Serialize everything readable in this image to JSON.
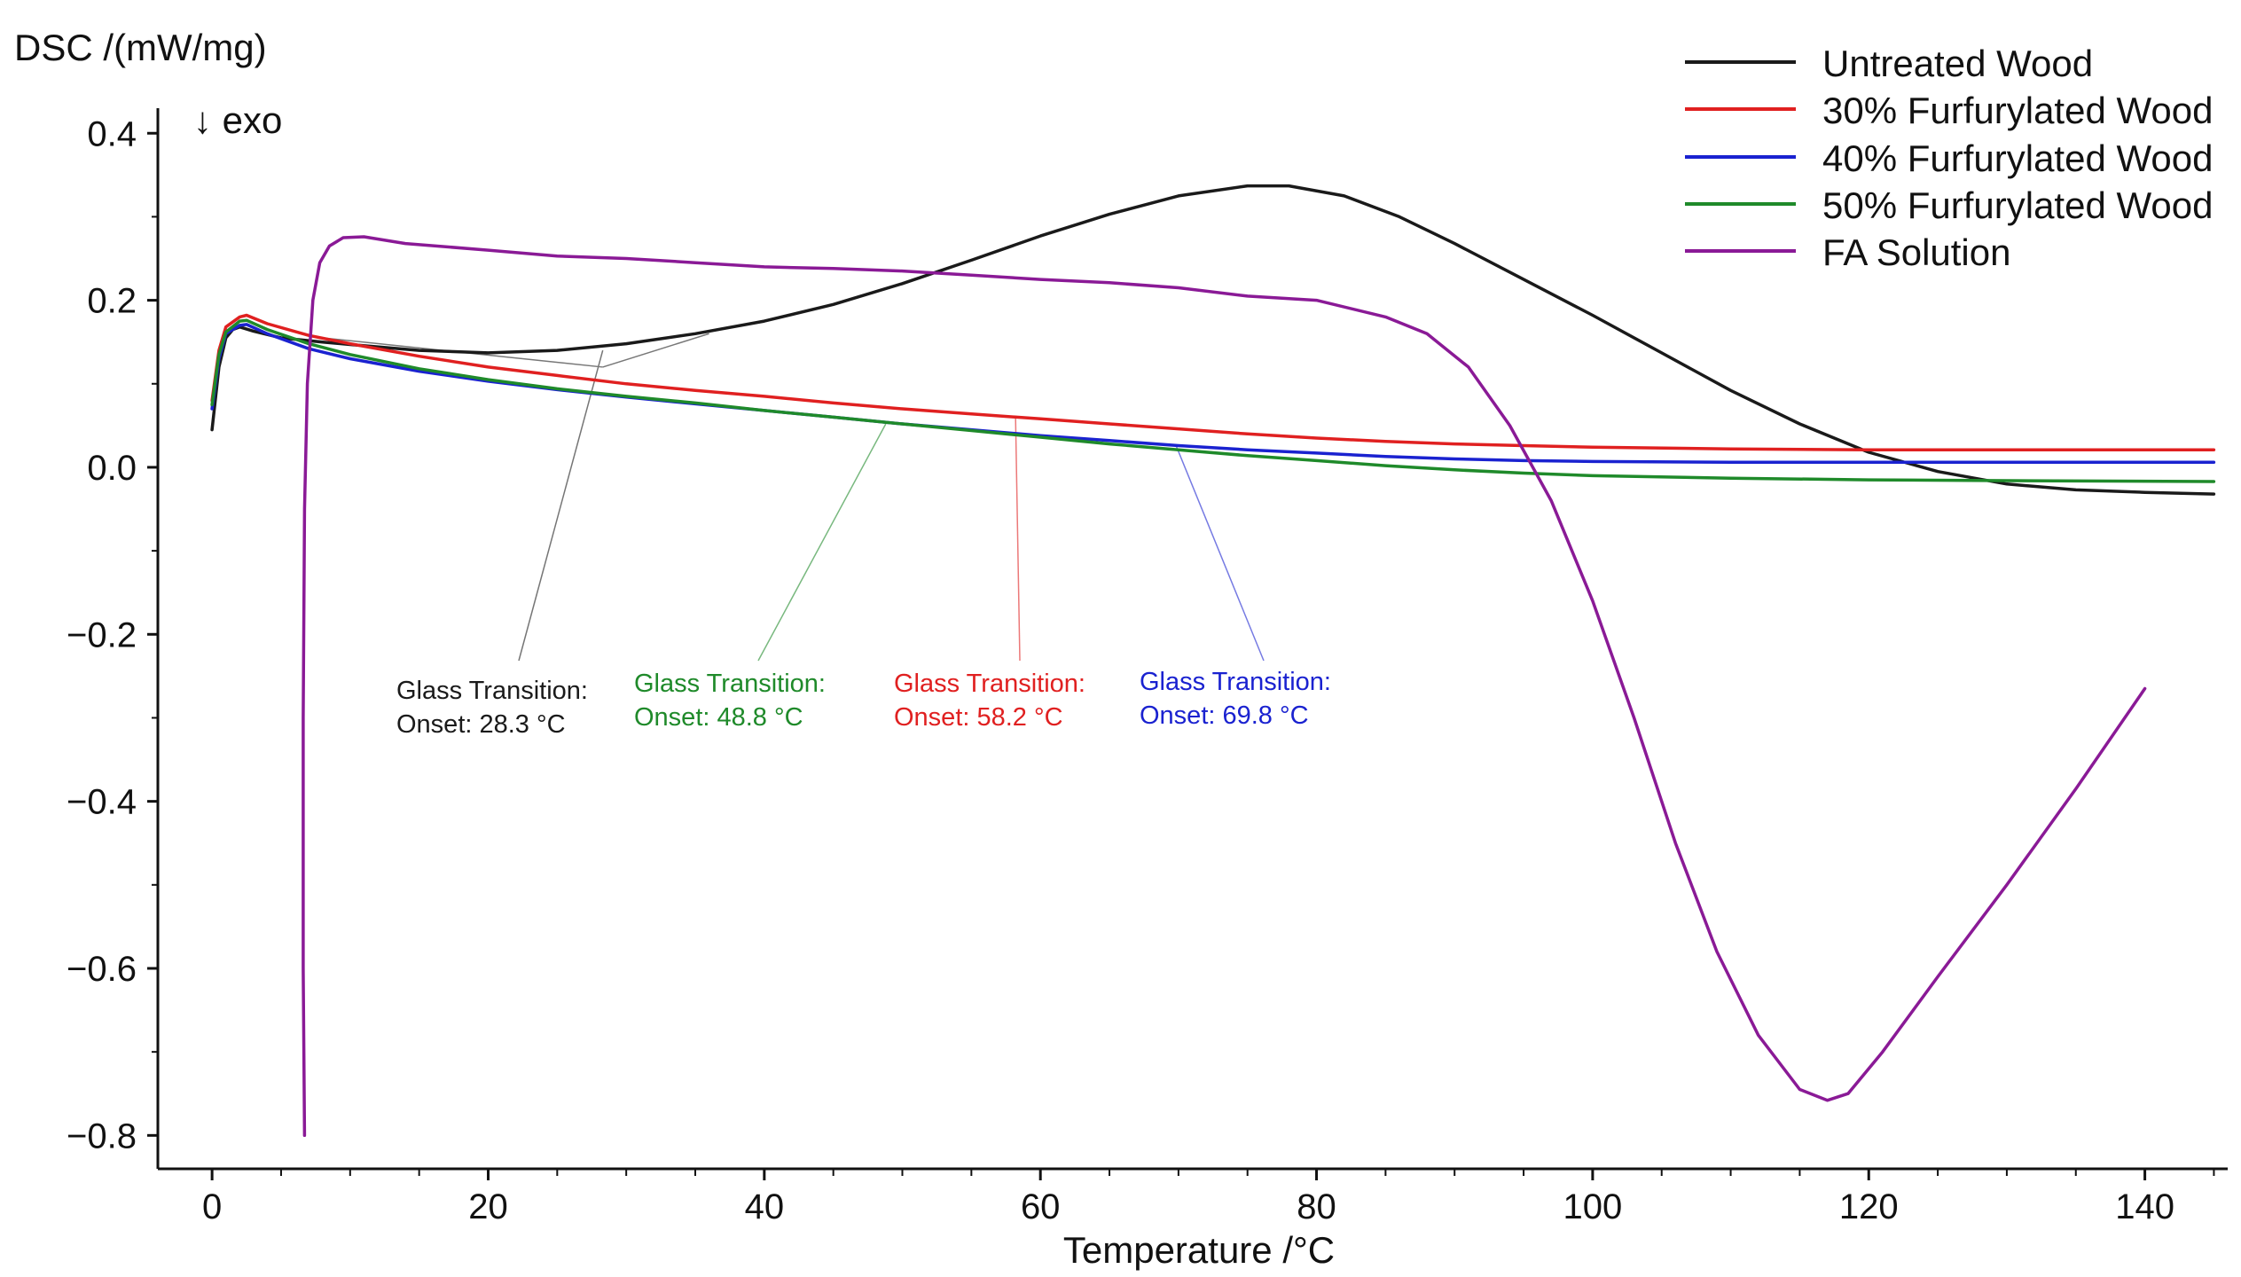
{
  "chart_data": {
    "type": "line",
    "ylabel": "DSC /(mW/mg)",
    "xlabel": "Temperature /°C",
    "direction_note": "↓ exo",
    "xlim": [
      -2,
      146
    ],
    "ylim": [
      -0.84,
      0.43
    ],
    "x_ticks": [
      0,
      20,
      40,
      60,
      80,
      100,
      120,
      140
    ],
    "x_tick_labels": [
      "0",
      "20",
      "40",
      "60",
      "80",
      "100",
      "120",
      "140"
    ],
    "y_ticks": [
      0.4,
      0.2,
      0.0,
      -0.2,
      -0.4,
      -0.6,
      -0.8
    ],
    "y_tick_labels": [
      "0.4",
      "0.2",
      "0.0",
      "−0.2",
      "−0.4",
      "−0.6",
      "−0.8"
    ],
    "legend_position": "top-right",
    "series": [
      {
        "name": "Untreated Wood",
        "color": "#1a1a1a",
        "points": [
          [
            0,
            0.045
          ],
          [
            0.5,
            0.12
          ],
          [
            1,
            0.155
          ],
          [
            1.5,
            0.165
          ],
          [
            2,
            0.168
          ],
          [
            3,
            0.163
          ],
          [
            5,
            0.155
          ],
          [
            8,
            0.15
          ],
          [
            10,
            0.147
          ],
          [
            15,
            0.14
          ],
          [
            20,
            0.137
          ],
          [
            25,
            0.14
          ],
          [
            30,
            0.148
          ],
          [
            35,
            0.16
          ],
          [
            40,
            0.175
          ],
          [
            45,
            0.195
          ],
          [
            50,
            0.22
          ],
          [
            55,
            0.248
          ],
          [
            60,
            0.277
          ],
          [
            65,
            0.303
          ],
          [
            70,
            0.325
          ],
          [
            75,
            0.337
          ],
          [
            78,
            0.337
          ],
          [
            82,
            0.325
          ],
          [
            86,
            0.3
          ],
          [
            90,
            0.268
          ],
          [
            95,
            0.225
          ],
          [
            100,
            0.182
          ],
          [
            105,
            0.137
          ],
          [
            110,
            0.092
          ],
          [
            115,
            0.052
          ],
          [
            120,
            0.018
          ],
          [
            125,
            -0.005
          ],
          [
            130,
            -0.02
          ],
          [
            135,
            -0.027
          ],
          [
            140,
            -0.03
          ],
          [
            145,
            -0.032
          ]
        ]
      },
      {
        "name": "30% Furfurylated Wood",
        "color": "#e02020",
        "points": [
          [
            0,
            0.08
          ],
          [
            0.5,
            0.14
          ],
          [
            1,
            0.168
          ],
          [
            2,
            0.18
          ],
          [
            2.5,
            0.182
          ],
          [
            4,
            0.172
          ],
          [
            7,
            0.158
          ],
          [
            10,
            0.148
          ],
          [
            15,
            0.133
          ],
          [
            20,
            0.12
          ],
          [
            25,
            0.11
          ],
          [
            30,
            0.1
          ],
          [
            35,
            0.092
          ],
          [
            40,
            0.085
          ],
          [
            45,
            0.077
          ],
          [
            50,
            0.07
          ],
          [
            55,
            0.064
          ],
          [
            60,
            0.058
          ],
          [
            65,
            0.052
          ],
          [
            70,
            0.046
          ],
          [
            75,
            0.04
          ],
          [
            80,
            0.035
          ],
          [
            85,
            0.031
          ],
          [
            90,
            0.028
          ],
          [
            95,
            0.026
          ],
          [
            100,
            0.024
          ],
          [
            110,
            0.022
          ],
          [
            120,
            0.021
          ],
          [
            130,
            0.021
          ],
          [
            145,
            0.021
          ]
        ]
      },
      {
        "name": "40% Furfurylated Wood",
        "color": "#1a22d0",
        "points": [
          [
            0,
            0.07
          ],
          [
            0.5,
            0.13
          ],
          [
            1,
            0.16
          ],
          [
            2,
            0.17
          ],
          [
            2.5,
            0.171
          ],
          [
            4,
            0.16
          ],
          [
            7,
            0.142
          ],
          [
            10,
            0.13
          ],
          [
            15,
            0.115
          ],
          [
            20,
            0.103
          ],
          [
            25,
            0.093
          ],
          [
            30,
            0.084
          ],
          [
            35,
            0.076
          ],
          [
            40,
            0.068
          ],
          [
            45,
            0.06
          ],
          [
            50,
            0.052
          ],
          [
            55,
            0.045
          ],
          [
            60,
            0.038
          ],
          [
            65,
            0.032
          ],
          [
            70,
            0.026
          ],
          [
            75,
            0.021
          ],
          [
            80,
            0.017
          ],
          [
            85,
            0.013
          ],
          [
            90,
            0.01
          ],
          [
            95,
            0.008
          ],
          [
            100,
            0.007
          ],
          [
            110,
            0.006
          ],
          [
            120,
            0.006
          ],
          [
            130,
            0.006
          ],
          [
            145,
            0.006
          ]
        ]
      },
      {
        "name": "50% Furfurylated Wood",
        "color": "#1f8a2a",
        "points": [
          [
            0,
            0.075
          ],
          [
            0.5,
            0.135
          ],
          [
            1,
            0.162
          ],
          [
            2,
            0.175
          ],
          [
            2.5,
            0.176
          ],
          [
            4,
            0.165
          ],
          [
            7,
            0.148
          ],
          [
            10,
            0.135
          ],
          [
            15,
            0.118
          ],
          [
            20,
            0.105
          ],
          [
            25,
            0.094
          ],
          [
            30,
            0.085
          ],
          [
            35,
            0.077
          ],
          [
            40,
            0.068
          ],
          [
            45,
            0.06
          ],
          [
            50,
            0.052
          ],
          [
            55,
            0.044
          ],
          [
            60,
            0.036
          ],
          [
            65,
            0.028
          ],
          [
            70,
            0.021
          ],
          [
            75,
            0.014
          ],
          [
            80,
            0.008
          ],
          [
            85,
            0.002
          ],
          [
            90,
            -0.003
          ],
          [
            95,
            -0.007
          ],
          [
            100,
            -0.01
          ],
          [
            110,
            -0.013
          ],
          [
            120,
            -0.015
          ],
          [
            130,
            -0.016
          ],
          [
            145,
            -0.017
          ]
        ]
      },
      {
        "name": "FA Solution",
        "color": "#8a1a96",
        "points": [
          [
            6.7,
            -0.8
          ],
          [
            6.6,
            -0.6
          ],
          [
            6.6,
            -0.3
          ],
          [
            6.7,
            -0.05
          ],
          [
            6.9,
            0.1
          ],
          [
            7.3,
            0.2
          ],
          [
            7.8,
            0.245
          ],
          [
            8.5,
            0.265
          ],
          [
            9.5,
            0.275
          ],
          [
            11,
            0.276
          ],
          [
            14,
            0.268
          ],
          [
            20,
            0.26
          ],
          [
            25,
            0.253
          ],
          [
            30,
            0.25
          ],
          [
            35,
            0.245
          ],
          [
            40,
            0.24
          ],
          [
            45,
            0.238
          ],
          [
            50,
            0.235
          ],
          [
            55,
            0.23
          ],
          [
            60,
            0.225
          ],
          [
            65,
            0.221
          ],
          [
            70,
            0.215
          ],
          [
            75,
            0.205
          ],
          [
            80,
            0.2
          ],
          [
            85,
            0.18
          ],
          [
            88,
            0.16
          ],
          [
            91,
            0.12
          ],
          [
            94,
            0.05
          ],
          [
            97,
            -0.04
          ],
          [
            100,
            -0.16
          ],
          [
            103,
            -0.3
          ],
          [
            106,
            -0.45
          ],
          [
            109,
            -0.58
          ],
          [
            112,
            -0.68
          ],
          [
            115,
            -0.745
          ],
          [
            117,
            -0.758
          ],
          [
            118.5,
            -0.75
          ],
          [
            121,
            -0.7
          ],
          [
            125,
            -0.61
          ],
          [
            130,
            -0.5
          ],
          [
            135,
            -0.385
          ],
          [
            140,
            -0.265
          ]
        ]
      }
    ],
    "annotations": [
      {
        "line1": "Glass Transition:",
        "line2": "Onset:  28.3 °C",
        "onset_x": 28.3,
        "onset_y": 0.14,
        "color": "#1a1a1a"
      },
      {
        "line1": "Glass Transition:",
        "line2": "Onset:  48.8 °C",
        "onset_x": 48.8,
        "onset_y": 0.052,
        "color": "#1f8a2a"
      },
      {
        "line1": "Glass Transition:",
        "line2": "Onset:  58.2 °C",
        "onset_x": 58.2,
        "onset_y": 0.06,
        "color": "#e02020"
      },
      {
        "line1": "Glass Transition:",
        "line2": "Onset:  69.8 °C",
        "onset_x": 69.8,
        "onset_y": 0.027,
        "color": "#1a22d0"
      }
    ]
  }
}
